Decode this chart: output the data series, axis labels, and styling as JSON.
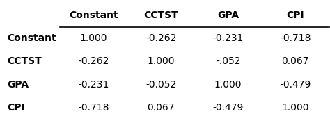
{
  "col_headers": [
    "Constant",
    "CCTST",
    "GPA",
    "CPI"
  ],
  "rows": [
    [
      "Constant",
      "1.000",
      "-0.262",
      "-0.231",
      "-0.718"
    ],
    [
      "CCTST",
      "-0.262",
      "1.000",
      "-.052",
      "0.067"
    ],
    [
      "GPA",
      "-0.231",
      "-0.052",
      "1.000",
      "-0.479"
    ],
    [
      "CPI",
      "-0.718",
      "0.067",
      "-0.479",
      "1.000"
    ]
  ],
  "background_color": "#ffffff",
  "header_fontsize": 10,
  "cell_fontsize": 10,
  "header_fontweight": "bold",
  "row_label_fontweight": "bold",
  "figsize": [
    4.74,
    1.77
  ],
  "dpi": 100
}
